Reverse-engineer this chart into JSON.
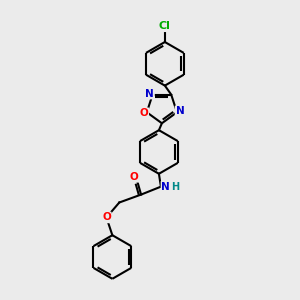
{
  "bg_color": "#ebebeb",
  "bond_color": "#000000",
  "atom_colors": {
    "N": "#0000cc",
    "O": "#ff0000",
    "Cl": "#00aa00",
    "H": "#008888"
  },
  "figsize": [
    3.0,
    3.0
  ],
  "dpi": 100
}
